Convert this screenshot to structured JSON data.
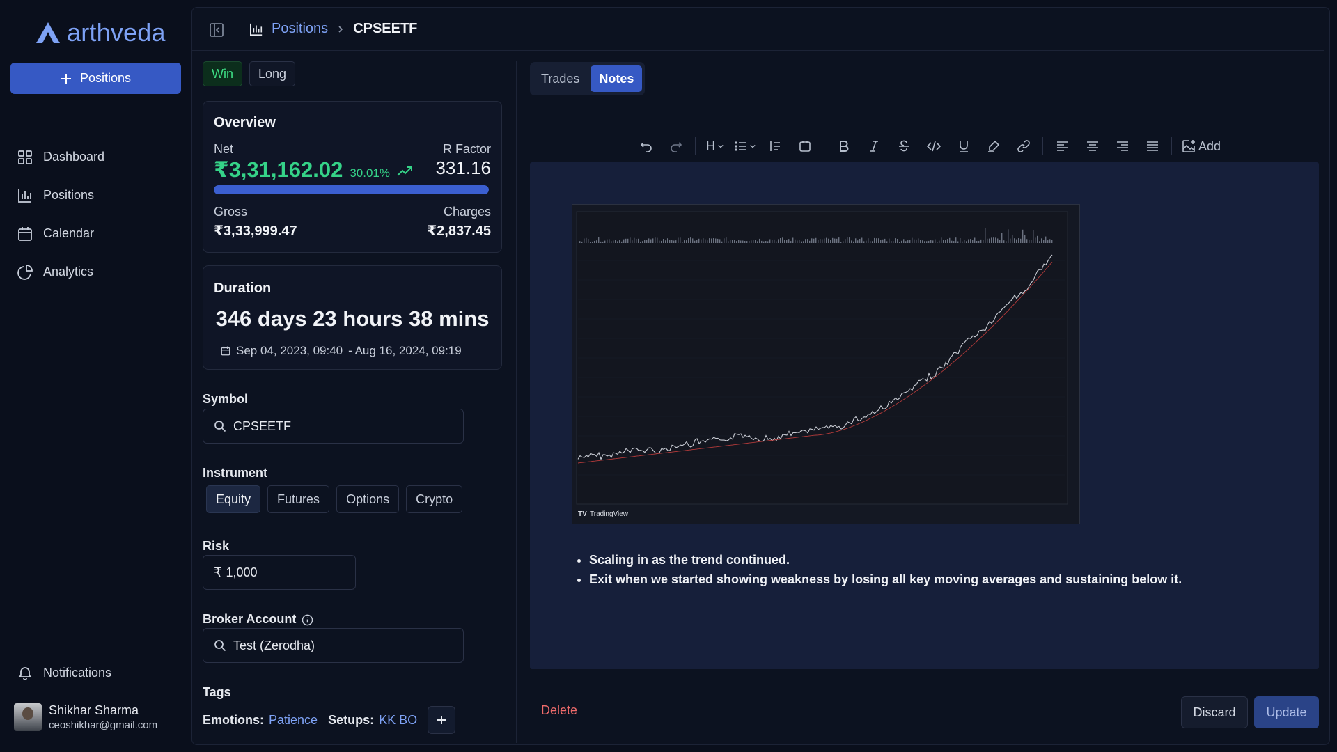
{
  "app": {
    "name": "arthveda"
  },
  "sidebar": {
    "new_button": "Positions",
    "items": [
      {
        "label": "Dashboard",
        "icon": "grid-icon"
      },
      {
        "label": "Positions",
        "icon": "chart-bar-icon"
      },
      {
        "label": "Calendar",
        "icon": "calendar-icon"
      },
      {
        "label": "Analytics",
        "icon": "pie-chart-icon"
      }
    ],
    "notifications": "Notifications",
    "user": {
      "name": "Shikhar Sharma",
      "email": "ceoshikhar@gmail.com"
    }
  },
  "breadcrumb": {
    "parent": "Positions",
    "current": "CPSEETF"
  },
  "badges": {
    "outcome": "Win",
    "direction": "Long"
  },
  "overview": {
    "title": "Overview",
    "net_label": "Net",
    "net_value": "₹3,31,162.02",
    "net_pct": "30.01%",
    "rfactor_label": "R Factor",
    "rfactor_value": "331.16",
    "progress_fraction": 1.0,
    "gross_label": "Gross",
    "gross_value": "₹3,33,999.47",
    "charges_label": "Charges",
    "charges_value": "₹2,837.45"
  },
  "duration": {
    "title": "Duration",
    "value": "346 days 23 hours 38 mins",
    "start": "Sep 04, 2023, 09:40",
    "end": "- Aug 16, 2024, 09:19"
  },
  "form": {
    "symbol_label": "Symbol",
    "symbol_value": "CPSEETF",
    "instrument_label": "Instrument",
    "instruments": [
      "Equity",
      "Futures",
      "Options",
      "Crypto"
    ],
    "instrument_selected": "Equity",
    "risk_label": "Risk",
    "risk_currency": "₹",
    "risk_value": "1,000",
    "broker_label": "Broker Account",
    "broker_value": "Test (Zerodha)",
    "tags_label": "Tags",
    "tags": [
      {
        "key": "Emotions:",
        "value": "Patience"
      },
      {
        "key": "Setups:",
        "value": "KK BO"
      }
    ]
  },
  "tabs": {
    "trades": "Trades",
    "notes": "Notes",
    "active": "Notes"
  },
  "toolbar": {
    "heading": "H",
    "add_label": "Add"
  },
  "notes": {
    "bullets": [
      "Scaling in as the trend continued.",
      "Exit when we started showing weakness by losing all key moving averages and sustaining below it."
    ],
    "chart_footer": "TradingView"
  },
  "actions": {
    "delete": "Delete",
    "discard": "Discard",
    "update": "Update"
  },
  "colors": {
    "accent": "#3659c4",
    "profit": "#35d388",
    "danger": "#ef6b6b",
    "link": "#7ea2f5"
  }
}
